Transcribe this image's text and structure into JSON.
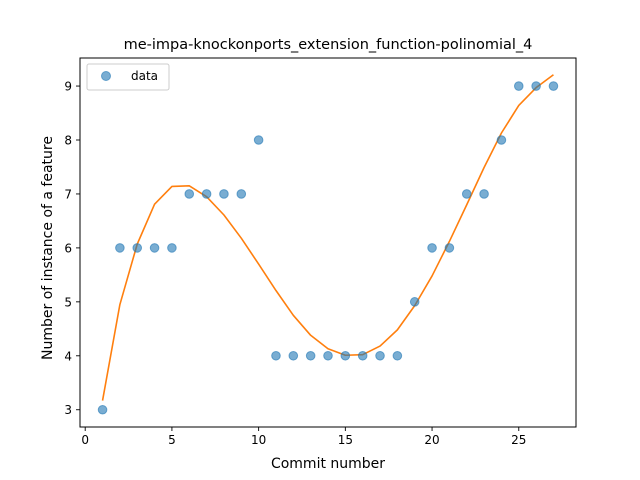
{
  "chart_data": {
    "type": "scatter",
    "title": "me-impa-knockonports_extension_function-polinomial_4",
    "xlabel": "Commit number",
    "ylabel": "Number of instance of a feature",
    "xlim": [
      -0.3,
      28.3
    ],
    "ylim": [
      2.68,
      9.52
    ],
    "xticks": [
      0,
      5,
      10,
      15,
      20,
      25
    ],
    "yticks": [
      3,
      4,
      5,
      6,
      7,
      8,
      9
    ],
    "grid": false,
    "legend_position": "top-left",
    "series": [
      {
        "name": "data",
        "kind": "scatter",
        "color": "#1f77b4",
        "x": [
          1,
          2,
          3,
          4,
          5,
          6,
          7,
          8,
          9,
          10,
          11,
          12,
          13,
          14,
          15,
          16,
          17,
          18,
          19,
          20,
          21,
          22,
          23,
          24,
          25,
          26,
          27
        ],
        "y": [
          3,
          6,
          6,
          6,
          6,
          7,
          7,
          7,
          7,
          8,
          4,
          4,
          4,
          4,
          4,
          4,
          4,
          4,
          5,
          6,
          6,
          7,
          7,
          8,
          9,
          9,
          9
        ]
      },
      {
        "kind": "line",
        "color": "#ff7f0e",
        "x": [
          1,
          2,
          3,
          4,
          5,
          6,
          7,
          8,
          9,
          10,
          11,
          12,
          13,
          14,
          15,
          16,
          17,
          18,
          19,
          20,
          21,
          22,
          23,
          24,
          25,
          26,
          27
        ],
        "y": [
          3.17,
          4.95,
          6.07,
          6.81,
          7.14,
          7.15,
          6.95,
          6.61,
          6.18,
          5.7,
          5.21,
          4.75,
          4.38,
          4.13,
          4.01,
          4.02,
          4.18,
          4.48,
          4.93,
          5.48,
          6.12,
          6.8,
          7.49,
          8.13,
          8.64,
          8.97,
          9.21
        ]
      }
    ]
  }
}
